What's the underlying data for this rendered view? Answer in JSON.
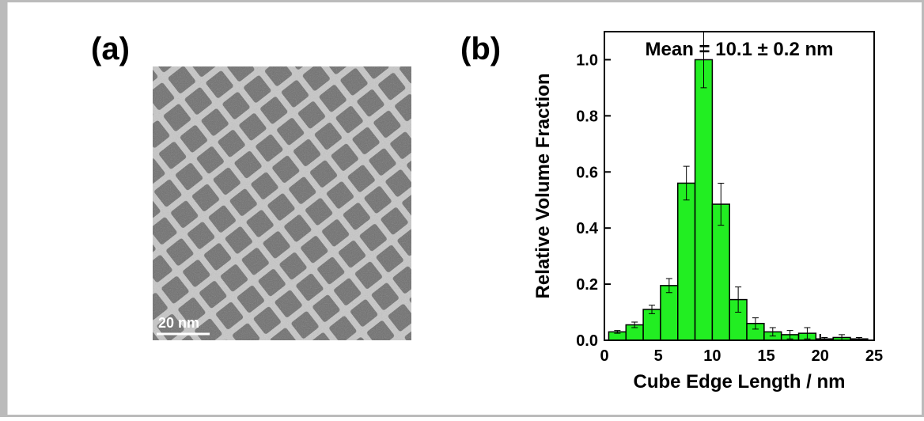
{
  "panels": {
    "a_label": "(a)",
    "b_label": "(b)",
    "scale_bar": "20 nm"
  },
  "chart_data": {
    "type": "histogram",
    "annotation": "Mean = 10.1 ± 0.2 nm",
    "x_label": "Cube Edge Length / nm",
    "y_label": "Relative Volume Fraction",
    "bins": [
      0.4,
      2.0,
      3.6,
      5.2,
      6.8,
      8.4,
      10.0,
      11.6,
      13.2,
      14.8,
      16.4,
      18.0,
      19.6,
      21.2,
      22.8,
      24.4
    ],
    "values": [
      0.03,
      0.055,
      0.11,
      0.195,
      0.56,
      1.0,
      0.485,
      0.145,
      0.06,
      0.03,
      0.02,
      0.025,
      0.005,
      0.01,
      0.005
    ],
    "errors": [
      0.005,
      0.01,
      0.015,
      0.025,
      0.06,
      0.1,
      0.075,
      0.045,
      0.02,
      0.015,
      0.015,
      0.02,
      0.005,
      0.01,
      0.005
    ],
    "color": "#22ee22",
    "xlim": [
      0,
      25
    ],
    "xticks": [
      0,
      5,
      10,
      15,
      20,
      25
    ],
    "ylim": [
      0,
      1.1
    ],
    "yticks": [
      {
        "value": 0,
        "label": "0.0"
      },
      {
        "value": 0.2,
        "label": "0.2"
      },
      {
        "value": 0.4,
        "label": "0.4"
      },
      {
        "value": 0.6,
        "label": "0.6"
      },
      {
        "value": 0.8,
        "label": "0.8"
      },
      {
        "value": 1.0,
        "label": "1.0"
      }
    ]
  }
}
